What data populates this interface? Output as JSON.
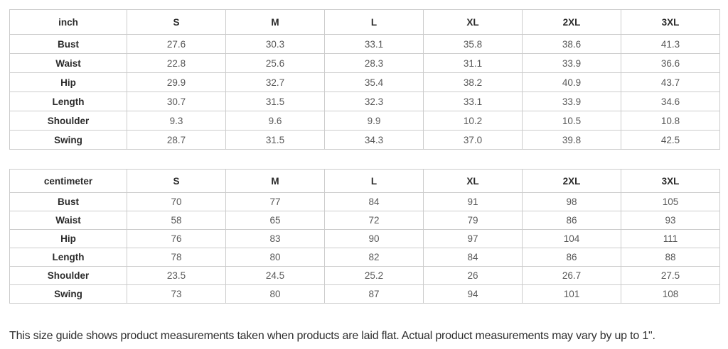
{
  "tables": [
    {
      "unit_label": "inch",
      "sizes": [
        "S",
        "M",
        "L",
        "XL",
        "2XL",
        "3XL"
      ],
      "rows": [
        {
          "label": "Bust",
          "values": [
            "27.6",
            "30.3",
            "33.1",
            "35.8",
            "38.6",
            "41.3"
          ]
        },
        {
          "label": "Waist",
          "values": [
            "22.8",
            "25.6",
            "28.3",
            "31.1",
            "33.9",
            "36.6"
          ]
        },
        {
          "label": "Hip",
          "values": [
            "29.9",
            "32.7",
            "35.4",
            "38.2",
            "40.9",
            "43.7"
          ]
        },
        {
          "label": "Length",
          "values": [
            "30.7",
            "31.5",
            "32.3",
            "33.1",
            "33.9",
            "34.6"
          ]
        },
        {
          "label": "Shoulder",
          "values": [
            "9.3",
            "9.6",
            "9.9",
            "10.2",
            "10.5",
            "10.8"
          ]
        },
        {
          "label": "Swing",
          "values": [
            "28.7",
            "31.5",
            "34.3",
            "37.0",
            "39.8",
            "42.5"
          ]
        }
      ]
    },
    {
      "unit_label": "centimeter",
      "sizes": [
        "S",
        "M",
        "L",
        "XL",
        "2XL",
        "3XL"
      ],
      "rows": [
        {
          "label": "Bust",
          "values": [
            "70",
            "77",
            "84",
            "91",
            "98",
            "105"
          ]
        },
        {
          "label": "Waist",
          "values": [
            "58",
            "65",
            "72",
            "79",
            "86",
            "93"
          ]
        },
        {
          "label": "Hip",
          "values": [
            "76",
            "83",
            "90",
            "97",
            "104",
            "111"
          ]
        },
        {
          "label": "Length",
          "values": [
            "78",
            "80",
            "82",
            "84",
            "86",
            "88"
          ]
        },
        {
          "label": "Shoulder",
          "values": [
            "23.5",
            "24.5",
            "25.2",
            "26",
            "26.7",
            "27.5"
          ]
        },
        {
          "label": "Swing",
          "values": [
            "73",
            "80",
            "87",
            "94",
            "101",
            "108"
          ]
        }
      ]
    }
  ],
  "footer": {
    "note": "This size guide shows product measurements taken when products are laid flat. Actual product measurements may vary by up to 1\"."
  },
  "colors": {
    "background": "#ffffff",
    "border": "#cccccc",
    "header_text": "#2b2b2b",
    "value_text": "#585858",
    "note_text": "#2f2f2f"
  }
}
